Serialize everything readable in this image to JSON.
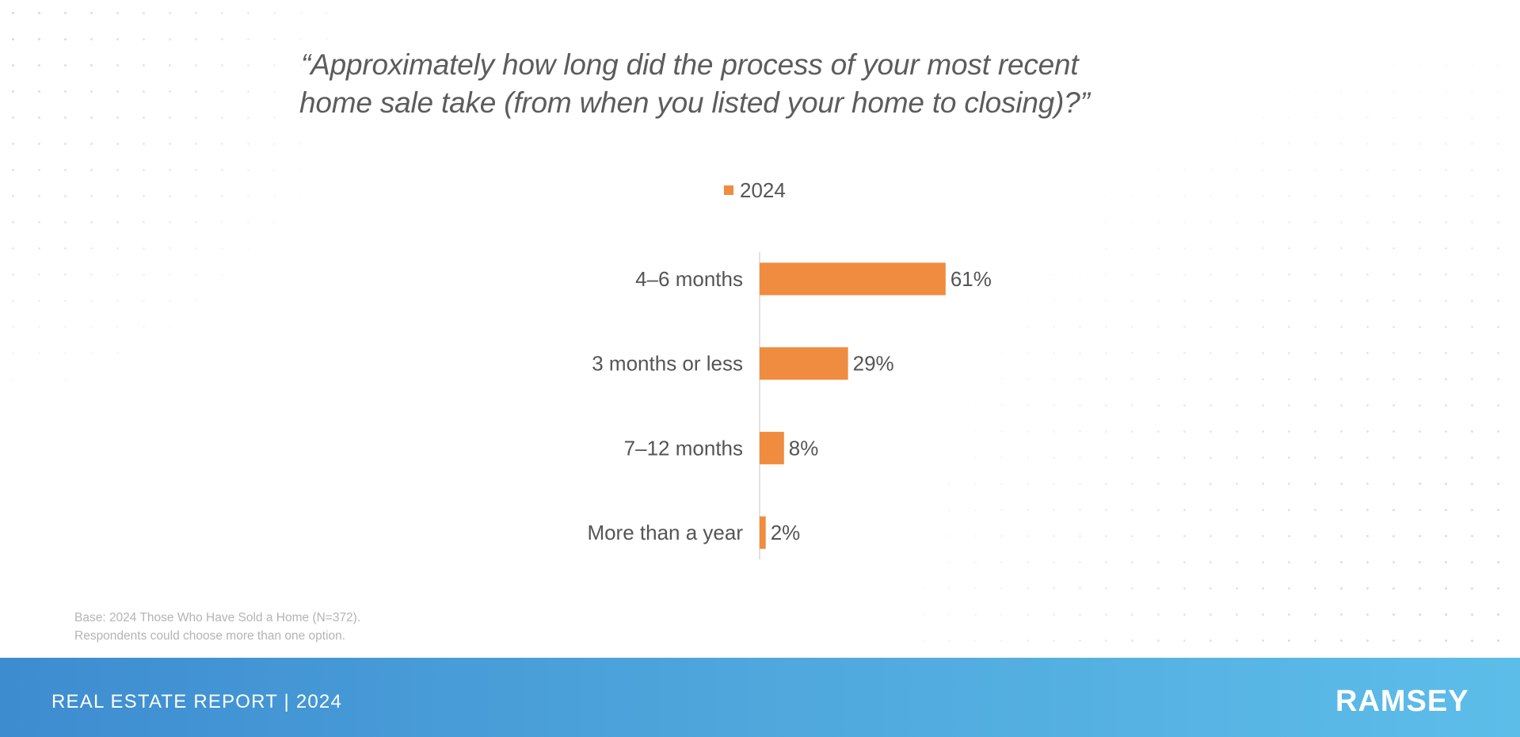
{
  "title_lines": [
    "“Approximately how long did the process of your most recent",
    "home sale take (from when you listed your home to closing)?”"
  ],
  "chart_data": {
    "type": "bar",
    "orientation": "horizontal",
    "title": "“Approximately how long did the process of your most recent home sale take (from when you listed your home to closing)?”",
    "categories": [
      "4–6 months",
      "3 months or less",
      "7–12 months",
      "More than a year"
    ],
    "series": [
      {
        "name": "2024",
        "values": [
          61,
          29,
          8,
          2
        ],
        "color": "#f08c3f"
      }
    ],
    "value_labels": [
      "61%",
      "29%",
      "8%",
      "2%"
    ],
    "unit": "%",
    "legend": "top-center",
    "grid": false
  },
  "legend": {
    "label": "2024",
    "color": "#f08c3f"
  },
  "footnote": {
    "line1": "Base: 2024 Those Who Have Sold a Home (N=372).",
    "line2": "Respondents could choose more than one option."
  },
  "footer": {
    "report_label": "REAL ESTATE REPORT | 2024",
    "brand": "RAMSEY"
  },
  "colors": {
    "accent_orange": "#f08c3f",
    "footer_start": "#3d8cd0",
    "footer_end": "#5dbde9",
    "text_gray": "#555555"
  }
}
